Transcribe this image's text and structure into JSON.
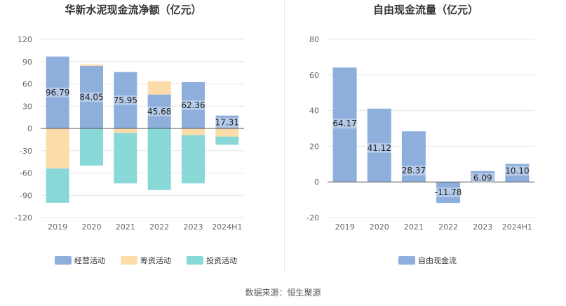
{
  "source_note": "数据来源：恒生聚源",
  "colors": {
    "operating": "#8eaedc",
    "financing": "#fcdca8",
    "investing": "#88d8d8",
    "fcf": "#8eaedc",
    "axis_text": "#666666",
    "grid": "#e6e6e6"
  },
  "chart_data": [
    {
      "type": "bar",
      "stacked": true,
      "title": "华新水泥现金流净额（亿元）",
      "categories": [
        "2019",
        "2020",
        "2021",
        "2022",
        "2023",
        "2024H1"
      ],
      "ylim": [
        -120,
        120
      ],
      "yticks": [
        120,
        90,
        60,
        30,
        0,
        -30,
        -60,
        -90,
        -120
      ],
      "legend_position": "bottom",
      "series": [
        {
          "name": "经营活动",
          "color_key": "operating",
          "values": [
            96.79,
            84.05,
            75.95,
            45.68,
            62.36,
            17.31
          ],
          "labeled": true
        },
        {
          "name": "筹资活动",
          "color_key": "financing",
          "values": [
            -54,
            2,
            -6,
            18,
            -9,
            -11
          ],
          "labeled": false
        },
        {
          "name": "投资活动",
          "color_key": "investing",
          "values": [
            -46,
            -50,
            -68,
            -83,
            -65,
            -11
          ],
          "labeled": false
        }
      ],
      "data_labels": [
        "96.79",
        "84.05",
        "75.95",
        "45.68",
        "62.36",
        "17.31"
      ]
    },
    {
      "type": "bar",
      "title": "自由现金流量（亿元）",
      "categories": [
        "2019",
        "2020",
        "2021",
        "2022",
        "2023",
        "2024H1"
      ],
      "ylim": [
        -20,
        80
      ],
      "yticks": [
        80,
        60,
        40,
        20,
        0,
        -20
      ],
      "legend_position": "bottom",
      "series": [
        {
          "name": "自由现金流",
          "color_key": "fcf",
          "values": [
            64.17,
            41.12,
            28.37,
            -11.78,
            6.09,
            10.1
          ]
        }
      ],
      "data_labels": [
        "64.17",
        "41.12",
        "28.37",
        "-11.78",
        "6.09",
        "10.10"
      ]
    }
  ]
}
